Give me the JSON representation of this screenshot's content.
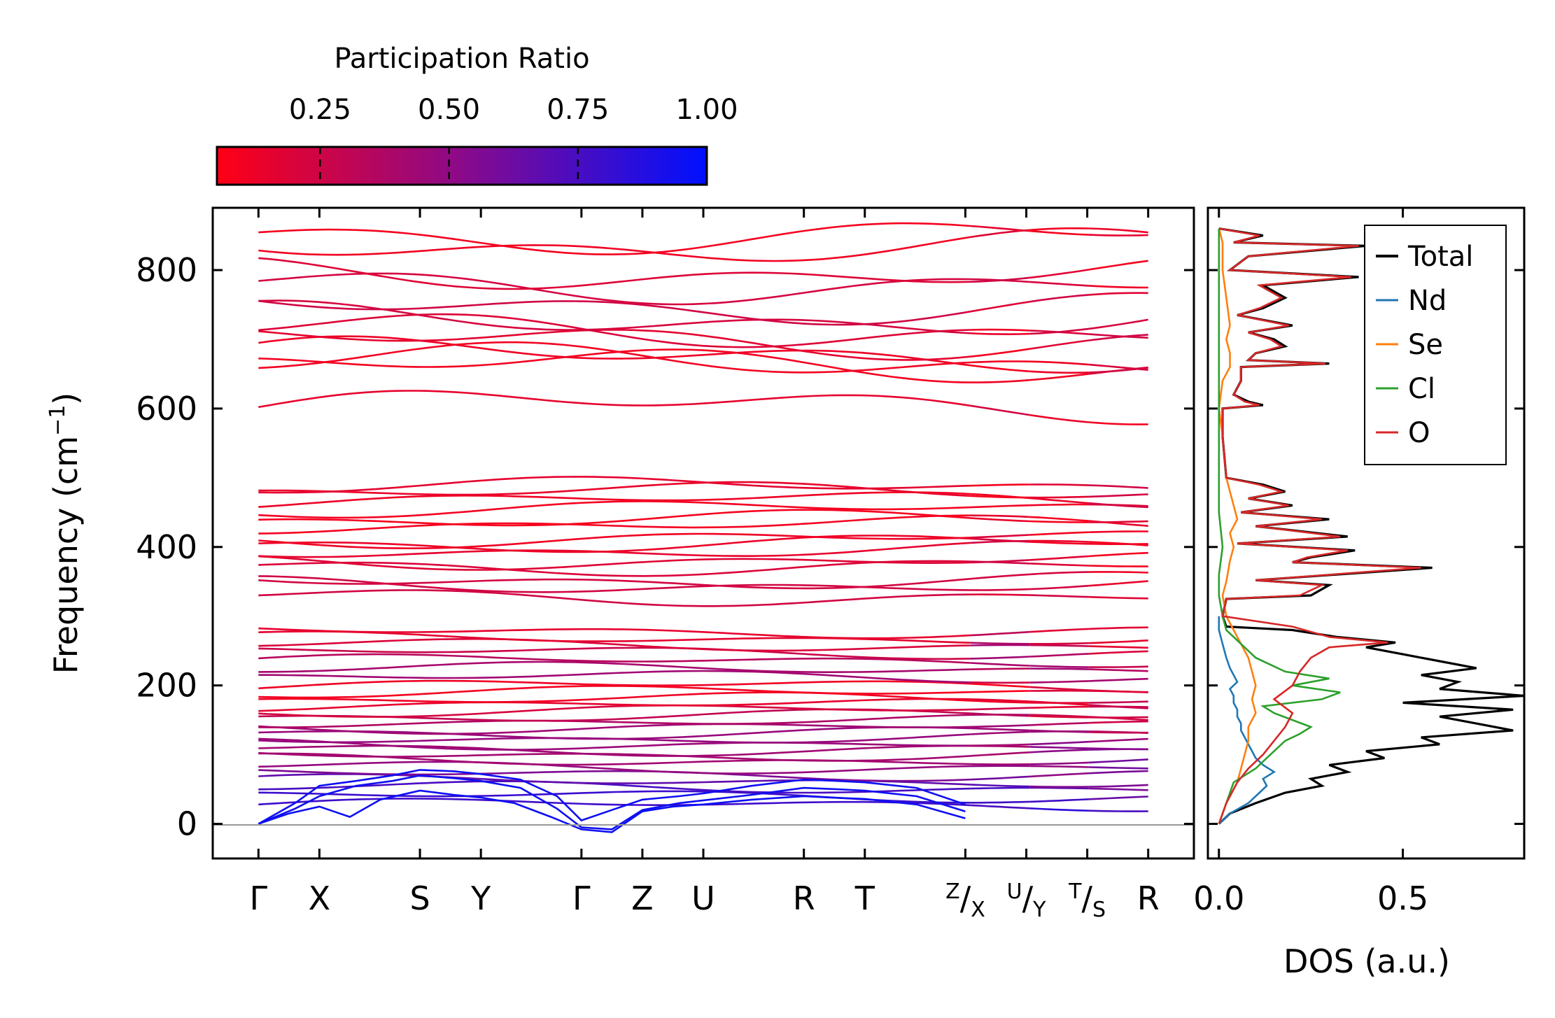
{
  "chart_data": [
    {
      "type": "line",
      "name": "phonon-band-structure",
      "ylabel": "Frequency (cm",
      "ylabel_sup": "−1",
      "ylabel_end": ")",
      "ylim": [
        -50,
        890
      ],
      "yticks": [
        0,
        200,
        400,
        600,
        800
      ],
      "zero_line": 0,
      "xticks": [
        {
          "label": "Γ",
          "pos": 0
        },
        {
          "label": "X",
          "pos": 1
        },
        {
          "label": "S",
          "pos": 2.65
        },
        {
          "label": "Y",
          "pos": 3.65
        },
        {
          "label": "Γ",
          "pos": 5.3
        },
        {
          "label": "Z",
          "pos": 6.3
        },
        {
          "label": "U",
          "pos": 7.3
        },
        {
          "label": "R",
          "pos": 8.95
        },
        {
          "label": "T",
          "pos": 9.95
        },
        {
          "label": "Z|X",
          "sup": "Z",
          "main": "/X",
          "pos": 11.6
        },
        {
          "label": "U|Y",
          "sup": "U",
          "main": "/Y",
          "pos": 12.6
        },
        {
          "label": "T|S",
          "sup": "T",
          "main": "/S",
          "pos": 13.6
        },
        {
          "label": "R",
          "pos": 14.6
        }
      ],
      "xlim": [
        -0.75,
        15.35
      ],
      "acoustic_branches": [
        {
          "name": "acoustic-1",
          "x": [
            0,
            0.5,
            1,
            1.5,
            2,
            2.65,
            3.2,
            3.65,
            4.2,
            4.8,
            5.3,
            5.8,
            6.3,
            6.8,
            7.3,
            8.1,
            8.95,
            9.4,
            9.95,
            10.8,
            11.6
          ],
          "y": [
            0,
            15,
            25,
            10,
            35,
            48,
            42,
            38,
            30,
            10,
            -8,
            -12,
            18,
            25,
            28,
            35,
            40,
            38,
            36,
            28,
            8
          ]
        },
        {
          "name": "acoustic-2",
          "x": [
            0,
            0.6,
            1,
            1.6,
            2.2,
            2.65,
            3.2,
            3.65,
            4.3,
            4.9,
            5.3,
            5.8,
            6.3,
            6.9,
            7.3,
            8.1,
            8.95,
            9.5,
            9.95,
            10.8,
            11.6
          ],
          "y": [
            0,
            22,
            40,
            55,
            62,
            70,
            66,
            62,
            52,
            22,
            -5,
            -8,
            20,
            30,
            34,
            42,
            52,
            50,
            48,
            40,
            18
          ]
        },
        {
          "name": "acoustic-3",
          "x": [
            0,
            0.6,
            1,
            1.6,
            2.2,
            2.65,
            3.2,
            3.65,
            4.3,
            4.9,
            5.3,
            5.8,
            6.3,
            6.9,
            7.3,
            8.1,
            8.95,
            9.5,
            9.95,
            10.8,
            11.6
          ],
          "y": [
            0,
            30,
            55,
            62,
            70,
            78,
            76,
            72,
            64,
            40,
            5,
            20,
            35,
            40,
            44,
            55,
            64,
            62,
            60,
            52,
            28
          ]
        }
      ],
      "optical_band_frequencies": [
        28,
        40,
        52,
        62,
        72,
        82,
        92,
        100,
        108,
        116,
        124,
        132,
        140,
        148,
        156,
        164,
        172,
        180,
        190,
        200,
        212,
        224,
        236,
        248,
        258,
        268,
        278,
        328,
        345,
        352,
        372,
        380,
        395,
        405,
        412,
        432,
        440,
        455,
        468,
        480,
        488,
        605,
        662,
        668,
        678,
        698,
        712,
        728,
        748,
        778,
        795,
        835,
        850
      ],
      "colorbar": {
        "title": "Participation Ratio",
        "ticks": [
          "0.25",
          "0.50",
          "0.75",
          "1.00"
        ],
        "range": [
          0.05,
          1.0
        ],
        "color_low": "#ff0015",
        "color_mid": "#8a0a8a",
        "color_high": "#0010ff"
      }
    },
    {
      "type": "line",
      "name": "phonon-dos",
      "xlabel": "DOS (a.u.)",
      "xticks": [
        "0.0",
        "0.5"
      ],
      "xlim": [
        -0.03,
        0.83
      ],
      "ylim": [
        -50,
        890
      ],
      "series": [
        {
          "name": "Total",
          "color": "#000000",
          "y": [
            0,
            15,
            30,
            45,
            55,
            65,
            75,
            85,
            95,
            105,
            115,
            125,
            135,
            145,
            155,
            165,
            175,
            185,
            195,
            205,
            215,
            225,
            235,
            245,
            255,
            262,
            270,
            280,
            285,
            300,
            325,
            330,
            345,
            352,
            370,
            378,
            385,
            395,
            405,
            415,
            430,
            440,
            450,
            460,
            470,
            480,
            490,
            500,
            560,
            600,
            605,
            610,
            620,
            640,
            660,
            665,
            670,
            680,
            690,
            700,
            710,
            720,
            735,
            745,
            760,
            778,
            790,
            800,
            820,
            835,
            840,
            850,
            860
          ],
          "x": [
            0.0,
            0.03,
            0.1,
            0.18,
            0.28,
            0.25,
            0.35,
            0.3,
            0.45,
            0.4,
            0.6,
            0.55,
            0.8,
            0.7,
            0.6,
            0.8,
            0.5,
            0.83,
            0.6,
            0.65,
            0.55,
            0.7,
            0.6,
            0.5,
            0.4,
            0.48,
            0.32,
            0.2,
            0.02,
            0.01,
            0.02,
            0.25,
            0.3,
            0.1,
            0.58,
            0.2,
            0.25,
            0.37,
            0.05,
            0.35,
            0.1,
            0.3,
            0.06,
            0.2,
            0.08,
            0.18,
            0.12,
            0.02,
            0.01,
            0.01,
            0.12,
            0.08,
            0.04,
            0.06,
            0.06,
            0.3,
            0.08,
            0.1,
            0.18,
            0.15,
            0.08,
            0.2,
            0.05,
            0.12,
            0.18,
            0.12,
            0.38,
            0.03,
            0.08,
            0.4,
            0.04,
            0.12,
            0.0
          ]
        },
        {
          "name": "Nd",
          "color": "#1f77b4",
          "y": [
            0,
            15,
            30,
            45,
            55,
            65,
            75,
            85,
            95,
            105,
            115,
            125,
            135,
            145,
            155,
            165,
            175,
            185,
            195,
            205,
            215,
            225,
            240,
            260,
            280,
            300
          ],
          "x": [
            0.0,
            0.03,
            0.08,
            0.11,
            0.13,
            0.12,
            0.15,
            0.12,
            0.1,
            0.09,
            0.08,
            0.07,
            0.06,
            0.06,
            0.05,
            0.05,
            0.04,
            0.04,
            0.03,
            0.05,
            0.04,
            0.03,
            0.02,
            0.01,
            0.0,
            0.0
          ]
        },
        {
          "name": "Se",
          "color": "#ff7f0e",
          "y": [
            0,
            30,
            60,
            80,
            100,
            120,
            140,
            160,
            180,
            200,
            220,
            240,
            260,
            280,
            300,
            330,
            350,
            380,
            400,
            420,
            440,
            460,
            480,
            500,
            560,
            600,
            640,
            660,
            680,
            700,
            720,
            760,
            800,
            840,
            860
          ],
          "x": [
            0.0,
            0.02,
            0.05,
            0.06,
            0.07,
            0.08,
            0.08,
            0.1,
            0.09,
            0.1,
            0.09,
            0.08,
            0.06,
            0.04,
            0.02,
            0.01,
            0.02,
            0.03,
            0.04,
            0.03,
            0.05,
            0.04,
            0.03,
            0.02,
            0.01,
            0.0,
            0.01,
            0.03,
            0.03,
            0.02,
            0.03,
            0.02,
            0.01,
            0.01,
            0.0
          ]
        },
        {
          "name": "Cl",
          "color": "#2ca02c",
          "y": [
            0,
            30,
            60,
            80,
            100,
            120,
            130,
            140,
            150,
            160,
            170,
            180,
            190,
            200,
            210,
            220,
            240,
            260,
            280,
            300,
            330,
            360,
            400,
            450,
            500,
            600,
            700,
            800,
            860
          ],
          "x": [
            0.0,
            0.02,
            0.04,
            0.1,
            0.14,
            0.18,
            0.22,
            0.25,
            0.2,
            0.15,
            0.12,
            0.28,
            0.33,
            0.2,
            0.3,
            0.18,
            0.1,
            0.06,
            0.02,
            0.01,
            0.0,
            0.0,
            0.01,
            0.0,
            0.0,
            0.0,
            0.0,
            0.0,
            0.0
          ]
        },
        {
          "name": "O",
          "color": "#d62728",
          "y": [
            0,
            30,
            60,
            80,
            100,
            120,
            140,
            160,
            180,
            200,
            220,
            240,
            255,
            262,
            270,
            285,
            300,
            325,
            330,
            345,
            352,
            370,
            378,
            385,
            395,
            405,
            415,
            430,
            440,
            450,
            460,
            470,
            480,
            490,
            500,
            560,
            600,
            605,
            610,
            620,
            640,
            660,
            665,
            670,
            680,
            690,
            700,
            710,
            720,
            735,
            745,
            760,
            778,
            790,
            800,
            820,
            835,
            840,
            850,
            860
          ],
          "x": [
            0.0,
            0.02,
            0.05,
            0.08,
            0.12,
            0.15,
            0.18,
            0.2,
            0.15,
            0.2,
            0.22,
            0.25,
            0.3,
            0.46,
            0.3,
            0.2,
            0.01,
            0.02,
            0.22,
            0.28,
            0.1,
            0.55,
            0.2,
            0.24,
            0.35,
            0.05,
            0.33,
            0.1,
            0.28,
            0.06,
            0.19,
            0.08,
            0.17,
            0.11,
            0.02,
            0.01,
            0.01,
            0.11,
            0.07,
            0.04,
            0.06,
            0.06,
            0.29,
            0.08,
            0.1,
            0.17,
            0.14,
            0.08,
            0.19,
            0.05,
            0.11,
            0.17,
            0.11,
            0.36,
            0.03,
            0.08,
            0.38,
            0.04,
            0.11,
            0.0
          ]
        }
      ],
      "legend": {
        "position": "top-right",
        "entries": [
          "Total",
          "Nd",
          "Se",
          "Cl",
          "O"
        ]
      }
    }
  ]
}
